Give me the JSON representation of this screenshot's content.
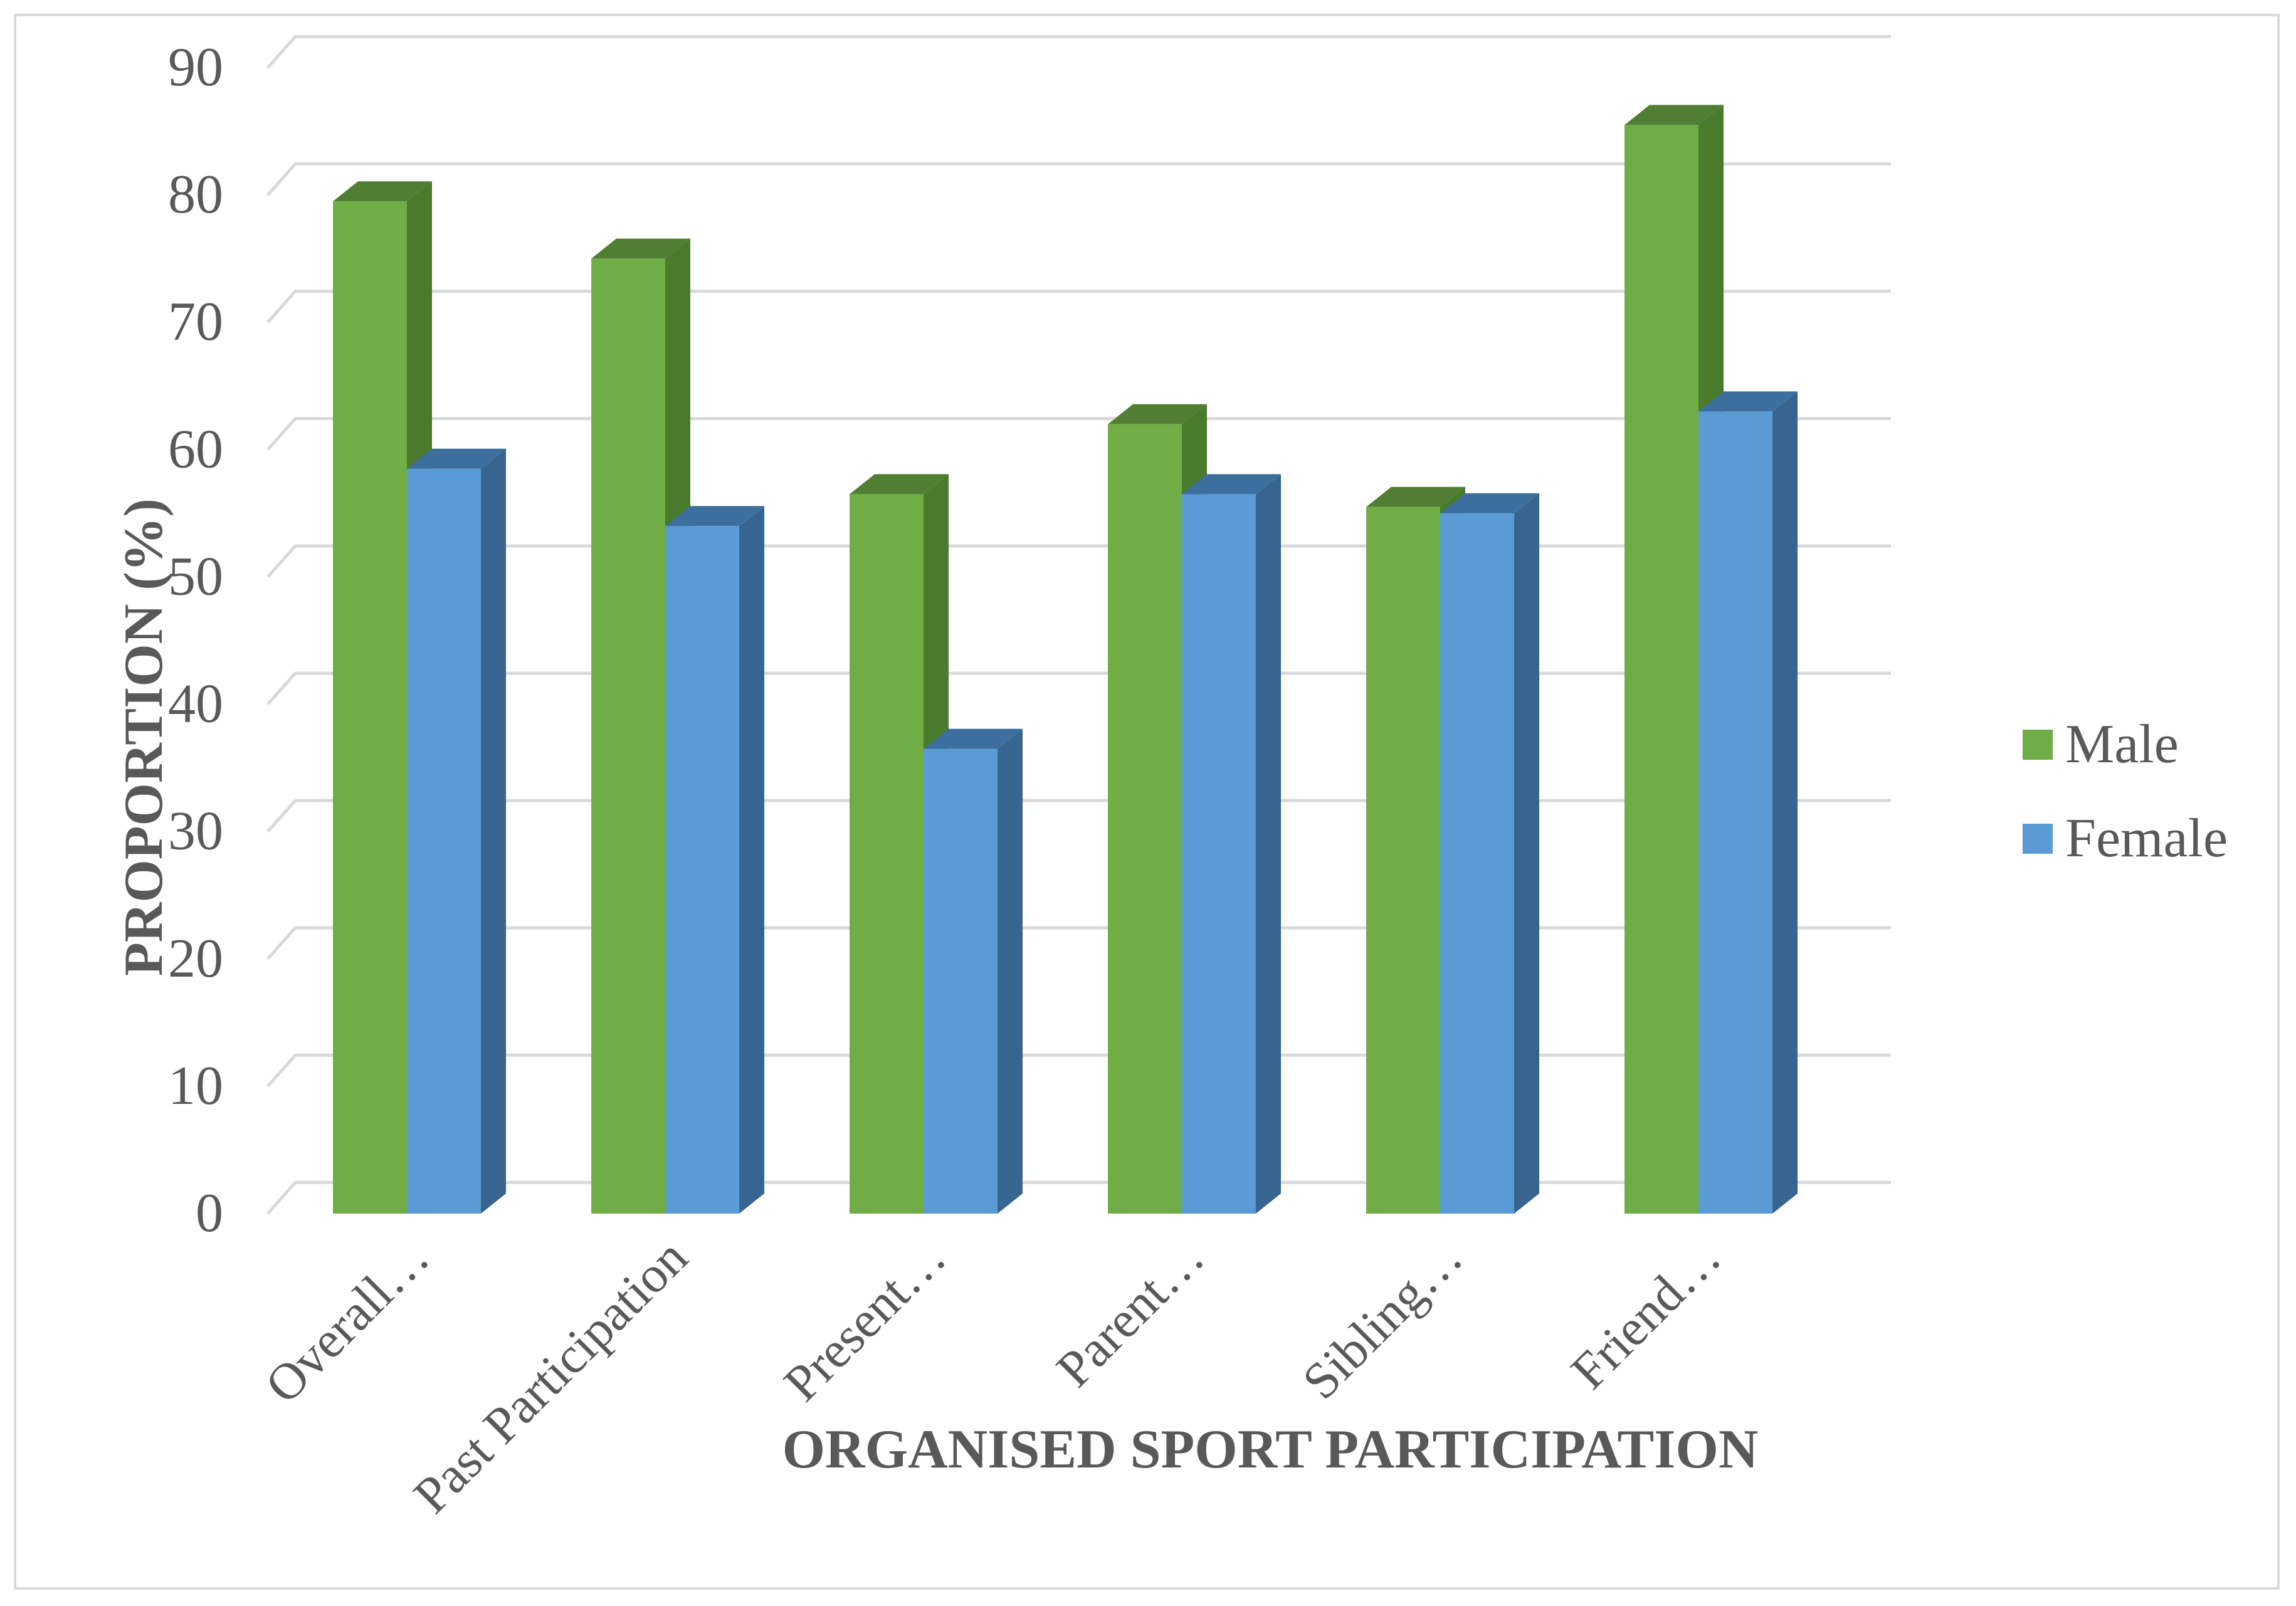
{
  "chart_data": {
    "type": "bar",
    "categories": [
      "Overall…",
      "Past Participation",
      "Present…",
      "Parent…",
      "Sibling…",
      "Friend…"
    ],
    "series": [
      {
        "name": "Male",
        "values": [
          79.5,
          75,
          56.5,
          62,
          55.5,
          85.5
        ],
        "color": "#70ad47",
        "side_color": "#4a7a2c",
        "top_color": "#507e32"
      },
      {
        "name": "Female",
        "values": [
          58.5,
          54,
          36.5,
          56.5,
          55,
          63
        ],
        "color": "#5b9bd5",
        "side_color": "#386590",
        "top_color": "#3d6f9e"
      }
    ],
    "xlabel": "ORGANISED SPORT PARTICIPATION",
    "ylabel": "PROPORTION (%)",
    "ylim": [
      0,
      90
    ],
    "yticks": [
      0,
      10,
      20,
      30,
      40,
      50,
      60,
      70,
      80,
      90
    ],
    "grid": true,
    "legend_position": "right"
  }
}
